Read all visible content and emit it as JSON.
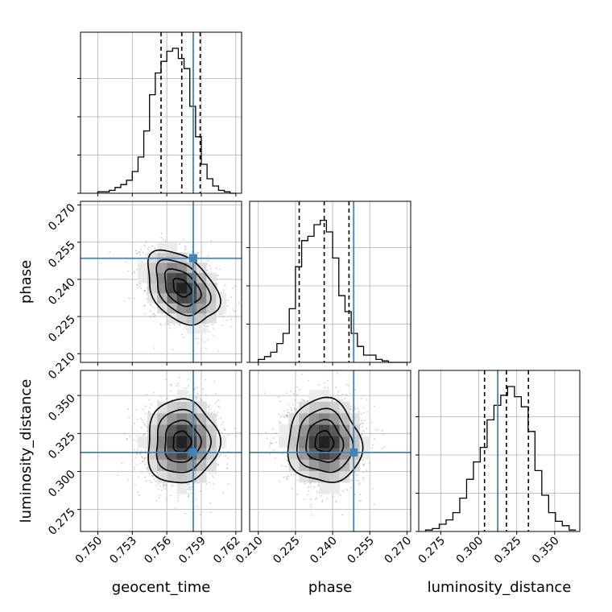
{
  "chart_data": {
    "type": "corner",
    "parameters": [
      "geocent_time",
      "phase",
      "luminosity_distance"
    ],
    "truths": {
      "geocent_time": 0.7583,
      "phase": 0.2485,
      "luminosity_distance": 0.3125
    },
    "colors": {
      "truth": "#4682b4",
      "hist": "#000000",
      "grid": "#b0b0b0",
      "points": "#9a9a9a"
    },
    "grid": true,
    "ranges": {
      "geocent_time": [
        0.7485,
        0.7625
      ],
      "phase": [
        0.2065,
        0.2715
      ],
      "luminosity_distance": [
        0.2605,
        0.3665
      ]
    },
    "ticks": {
      "geocent_time": [
        "0.750",
        "0.753",
        "0.756",
        "0.759",
        "0.762"
      ],
      "phase": [
        "0.210",
        "0.225",
        "0.240",
        "0.255",
        "0.270"
      ],
      "luminosity_distance": [
        "0.275",
        "0.300",
        "0.325",
        "0.350"
      ]
    },
    "quantiles": {
      "geocent_time": [
        0.7555,
        0.7573,
        0.7589
      ],
      "phase": [
        0.2265,
        0.2366,
        0.2466
      ],
      "luminosity_distance": [
        0.3038,
        0.3182,
        0.3327
      ]
    },
    "histograms": {
      "geocent_time": {
        "edges": [
          0.75,
          0.7505,
          0.751,
          0.7515,
          0.752,
          0.7525,
          0.753,
          0.7535,
          0.754,
          0.7545,
          0.755,
          0.7555,
          0.756,
          0.7565,
          0.757,
          0.7575,
          0.758,
          0.7585,
          0.759,
          0.7595,
          0.76,
          0.7605,
          0.761,
          0.7615,
          0.762
        ],
        "counts": [
          0.01,
          0.01,
          0.02,
          0.04,
          0.06,
          0.09,
          0.15,
          0.25,
          0.43,
          0.68,
          0.83,
          0.91,
          0.98,
          1.0,
          0.93,
          0.86,
          0.6,
          0.39,
          0.2,
          0.1,
          0.05,
          0.02,
          0.01,
          0.0
        ]
      },
      "phase": {
        "edges": [
          0.21,
          0.2125,
          0.215,
          0.2175,
          0.22,
          0.2225,
          0.225,
          0.2275,
          0.23,
          0.2325,
          0.235,
          0.2375,
          0.24,
          0.2425,
          0.245,
          0.2475,
          0.25,
          0.2525,
          0.255,
          0.2575,
          0.26,
          0.2625,
          0.265,
          0.2675,
          0.27
        ],
        "counts": [
          0.02,
          0.04,
          0.07,
          0.13,
          0.2,
          0.37,
          0.66,
          0.84,
          0.87,
          0.95,
          0.98,
          0.9,
          0.72,
          0.46,
          0.35,
          0.2,
          0.11,
          0.05,
          0.05,
          0.02,
          0.01,
          0.0,
          0.0,
          0.0
        ]
      },
      "luminosity_distance": {
        "edges": [
          0.265,
          0.2695,
          0.274,
          0.2785,
          0.283,
          0.2875,
          0.292,
          0.2965,
          0.301,
          0.3055,
          0.31,
          0.3145,
          0.319,
          0.3235,
          0.328,
          0.3325,
          0.337,
          0.3415,
          0.346,
          0.3505,
          0.355,
          0.3595,
          0.364
        ],
        "counts": [
          0.01,
          0.02,
          0.05,
          0.08,
          0.13,
          0.23,
          0.36,
          0.48,
          0.58,
          0.77,
          0.87,
          0.94,
          1.0,
          0.93,
          0.86,
          0.69,
          0.42,
          0.25,
          0.13,
          0.07,
          0.04,
          0.01
        ]
      }
    },
    "correlations": {
      "phase|geocent_time": -0.38,
      "luminosity_distance|geocent_time": 0.03,
      "luminosity_distance|phase": -0.05
    },
    "spreads": {
      "geocent_time": 0.00155,
      "phase": 0.0074,
      "luminosity_distance": 0.0138
    },
    "centers": {
      "geocent_time": 0.7573,
      "phase": 0.2366,
      "luminosity_distance": 0.3195
    }
  }
}
